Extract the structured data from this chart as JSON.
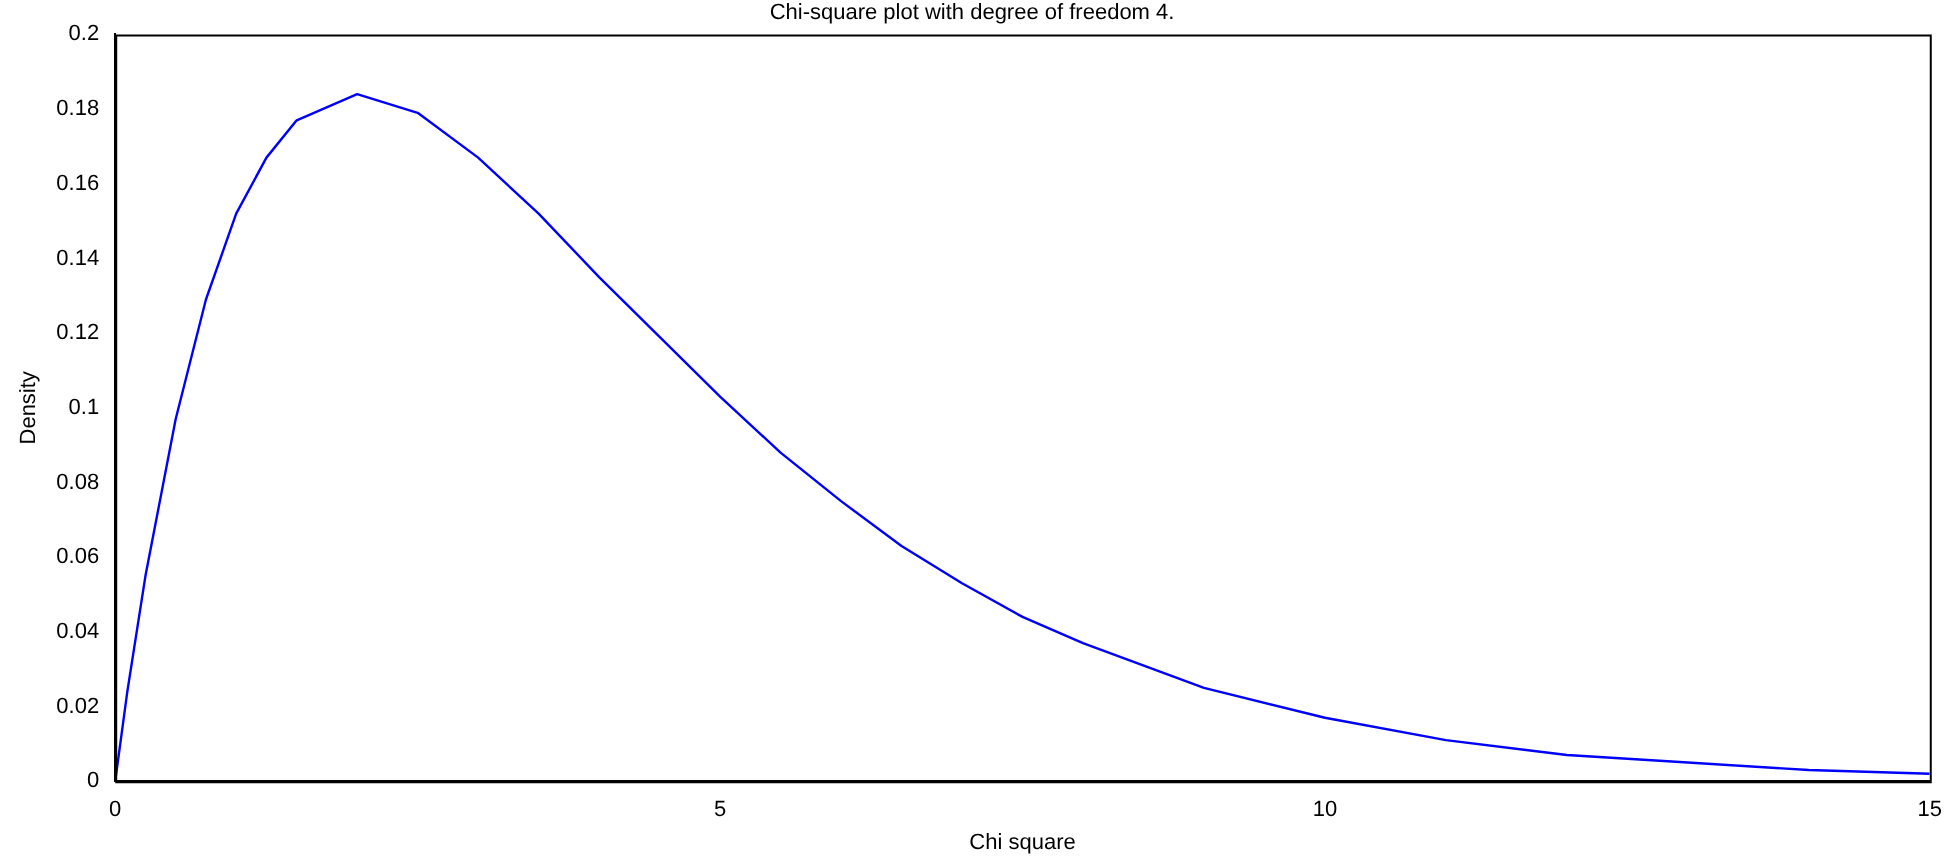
{
  "chart_data": {
    "type": "line",
    "title": "Chi-square plot with degree of freedom 4.",
    "xlabel": "Chi square",
    "ylabel": "Density",
    "x": [
      0,
      0.1,
      0.25,
      0.5,
      0.75,
      1,
      1.25,
      1.5,
      2,
      2.5,
      3,
      3.5,
      4,
      4.5,
      5,
      5.5,
      6,
      6.5,
      7,
      7.5,
      8,
      9,
      10,
      11,
      12,
      13,
      14,
      15
    ],
    "series": [
      {
        "color": "#0000ff",
        "values": [
          0,
          0.024,
          0.055,
          0.097,
          0.129,
          0.152,
          0.167,
          0.177,
          0.184,
          0.179,
          0.167,
          0.152,
          0.135,
          0.119,
          0.103,
          0.088,
          0.075,
          0.063,
          0.053,
          0.044,
          0.037,
          0.025,
          0.017,
          0.011,
          0.007,
          0.005,
          0.003,
          0.002
        ]
      }
    ],
    "xlim": [
      0,
      15
    ],
    "xticks": [
      0,
      5,
      10,
      15
    ],
    "ylim": [
      0,
      0.2
    ],
    "yticks": [
      0,
      0.02,
      0.04,
      0.06,
      0.08,
      0.1,
      0.12,
      0.14,
      0.16,
      0.18,
      0.2
    ],
    "grid": false,
    "legend": false,
    "marker": "none",
    "line_style": "solid"
  }
}
